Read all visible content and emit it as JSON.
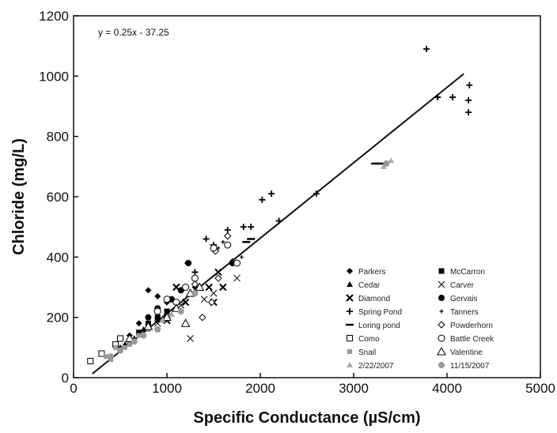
{
  "chart_data": {
    "type": "scatter",
    "title": "",
    "xlabel": "Specific Conductance (µS/cm)",
    "ylabel": "Chloride (mg/L)",
    "xlim": [
      0,
      5000
    ],
    "ylim": [
      0,
      1200
    ],
    "xticks": [
      "0",
      "1000",
      "2000",
      "3000",
      "4000",
      "5000"
    ],
    "yticks": [
      "0",
      "200",
      "400",
      "600",
      "800",
      "1000",
      "1200"
    ],
    "grid": false,
    "legend_position": "bottom-right",
    "annotation": "y = 0.25x - 37.25",
    "trendline": {
      "slope": 0.25,
      "intercept": -37.25,
      "x_range": [
        200,
        4180
      ]
    },
    "series": [
      {
        "name": "Parkers",
        "marker": "diamond",
        "points": [
          [
            1220,
            380
          ],
          [
            800,
            290
          ],
          [
            900,
            270
          ],
          [
            700,
            180
          ],
          [
            1000,
            250
          ],
          [
            1100,
            230
          ],
          [
            600,
            140
          ],
          [
            1300,
            300
          ]
        ]
      },
      {
        "name": "McCarron",
        "marker": "square-filled",
        "points": [
          [
            700,
            150
          ],
          [
            800,
            180
          ],
          [
            900,
            200
          ],
          [
            600,
            120
          ],
          [
            1000,
            220
          ]
        ]
      },
      {
        "name": "Cedar",
        "marker": "triangle-filled",
        "points": [
          [
            500,
            100
          ],
          [
            650,
            130
          ],
          [
            750,
            160
          ],
          [
            900,
            190
          ],
          [
            550,
            110
          ]
        ]
      },
      {
        "name": "Carver",
        "marker": "x",
        "points": [
          [
            1250,
            130
          ],
          [
            1500,
            280
          ],
          [
            1750,
            330
          ],
          [
            900,
            180
          ],
          [
            1150,
            240
          ],
          [
            1400,
            260
          ],
          [
            1000,
            200
          ]
        ]
      },
      {
        "name": "Diamond",
        "marker": "x-bold",
        "points": [
          [
            1450,
            300
          ],
          [
            1500,
            250
          ],
          [
            1550,
            350
          ],
          [
            1200,
            250
          ],
          [
            1100,
            300
          ],
          [
            1000,
            190
          ],
          [
            1600,
            300
          ]
        ]
      },
      {
        "name": "Gervais",
        "marker": "circle-filled",
        "points": [
          [
            1230,
            380
          ],
          [
            1050,
            260
          ],
          [
            900,
            230
          ],
          [
            1150,
            290
          ],
          [
            800,
            200
          ],
          [
            1700,
            380
          ]
        ]
      },
      {
        "name": "Spring Pond",
        "marker": "plus",
        "points": [
          [
            3780,
            1090
          ],
          [
            4240,
            970
          ],
          [
            4230,
            920
          ],
          [
            4230,
            880
          ],
          [
            4060,
            930
          ],
          [
            3900,
            930
          ],
          [
            2020,
            590
          ],
          [
            2120,
            610
          ],
          [
            1820,
            500
          ],
          [
            1900,
            500
          ],
          [
            2200,
            520
          ],
          [
            2600,
            610
          ],
          [
            1650,
            490
          ],
          [
            1500,
            440
          ],
          [
            1420,
            460
          ],
          [
            1300,
            350
          ]
        ]
      },
      {
        "name": "Tanners",
        "marker": "dot",
        "points": [
          [
            1550,
            430
          ],
          [
            1600,
            450
          ],
          [
            1700,
            390
          ],
          [
            1800,
            400
          ]
        ]
      },
      {
        "name": "Loring pond",
        "marker": "dash",
        "points": [
          [
            3230,
            710
          ],
          [
            3280,
            710
          ],
          [
            1900,
            460
          ],
          [
            1850,
            450
          ]
        ]
      },
      {
        "name": "Powderhorn",
        "marker": "diamond-open",
        "points": [
          [
            1380,
            200
          ],
          [
            1480,
            250
          ],
          [
            1520,
            420
          ],
          [
            1650,
            470
          ],
          [
            1550,
            330
          ],
          [
            1300,
            310
          ]
        ]
      },
      {
        "name": "Como",
        "marker": "square-open",
        "points": [
          [
            180,
            55
          ],
          [
            300,
            80
          ],
          [
            450,
            110
          ],
          [
            500,
            130
          ]
        ]
      },
      {
        "name": "Battle Creek",
        "marker": "circle-open",
        "points": [
          [
            1500,
            430
          ],
          [
            1650,
            440
          ],
          [
            1750,
            380
          ],
          [
            1200,
            300
          ],
          [
            900,
            220
          ],
          [
            1000,
            260
          ],
          [
            1300,
            330
          ],
          [
            1100,
            250
          ]
        ]
      },
      {
        "name": "Snail",
        "marker": "square-small",
        "points": [
          [
            400,
            60
          ],
          [
            500,
            90
          ],
          [
            600,
            110
          ],
          [
            700,
            140
          ],
          [
            800,
            160
          ],
          [
            350,
            70
          ],
          [
            450,
            100
          ],
          [
            550,
            100
          ]
        ]
      },
      {
        "name": "Valentine",
        "marker": "triangle-open",
        "points": [
          [
            1100,
            230
          ],
          [
            1200,
            180
          ],
          [
            1000,
            200
          ],
          [
            800,
            170
          ],
          [
            600,
            130
          ],
          [
            1350,
            300
          ],
          [
            1250,
            280
          ]
        ]
      },
      {
        "name": "2/22/2007",
        "marker": "triangle-small",
        "points": [
          [
            3400,
            720
          ],
          [
            3320,
            700
          ],
          [
            1050,
            210
          ],
          [
            950,
            190
          ]
        ]
      },
      {
        "name": "11/15/2007",
        "marker": "circle-gray",
        "points": [
          [
            3350,
            710
          ],
          [
            1300,
            280
          ],
          [
            1150,
            220
          ],
          [
            900,
            160
          ],
          [
            750,
            140
          ],
          [
            650,
            120
          ],
          [
            500,
            90
          ],
          [
            400,
            70
          ]
        ]
      }
    ]
  }
}
